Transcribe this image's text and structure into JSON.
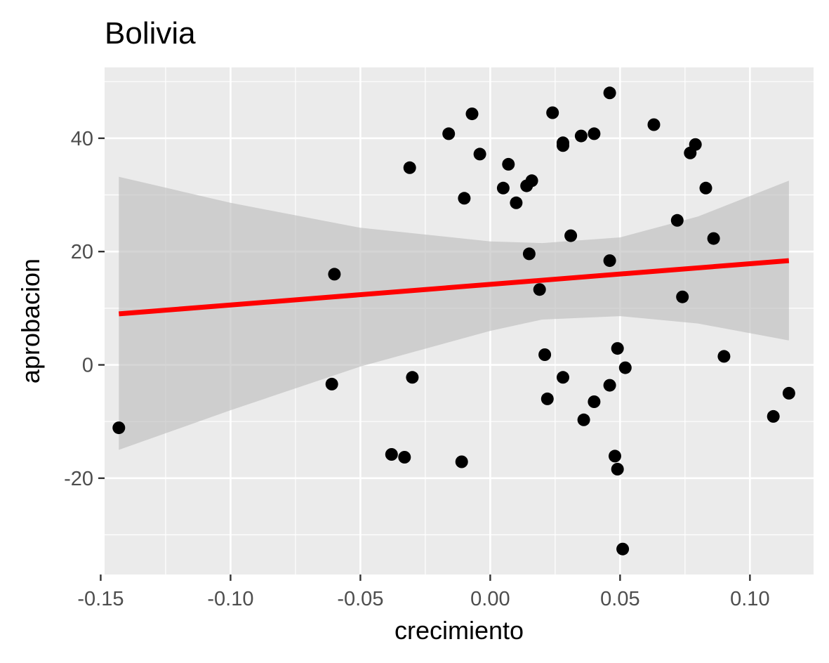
{
  "chart_data": {
    "type": "scatter",
    "title": "Bolivia",
    "xlabel": "crecimiento",
    "ylabel": "aprobacion",
    "xlim": [
      -0.1485,
      0.1245
    ],
    "ylim": [
      -37,
      52.5
    ],
    "x_ticks": [
      -0.15,
      -0.1,
      -0.05,
      0.0,
      0.05,
      0.1
    ],
    "x_tick_labels": [
      "-0.15",
      "-0.10",
      "-0.05",
      "0.00",
      "0.05",
      "0.10"
    ],
    "y_ticks": [
      -20,
      0,
      20,
      40
    ],
    "y_tick_labels": [
      "-20",
      "0",
      "20",
      "40"
    ],
    "grid": true,
    "points": [
      {
        "x": -0.143,
        "y": -11.1
      },
      {
        "x": -0.06,
        "y": 16.0
      },
      {
        "x": -0.061,
        "y": -3.4
      },
      {
        "x": -0.038,
        "y": -15.8
      },
      {
        "x": -0.033,
        "y": -16.3
      },
      {
        "x": -0.031,
        "y": 34.8
      },
      {
        "x": -0.03,
        "y": -2.2
      },
      {
        "x": -0.016,
        "y": 40.8
      },
      {
        "x": -0.011,
        "y": -17.1
      },
      {
        "x": -0.01,
        "y": 29.4
      },
      {
        "x": -0.007,
        "y": 44.3
      },
      {
        "x": -0.004,
        "y": 37.2
      },
      {
        "x": 0.005,
        "y": 31.2
      },
      {
        "x": 0.007,
        "y": 35.4
      },
      {
        "x": 0.01,
        "y": 28.6
      },
      {
        "x": 0.014,
        "y": 31.6
      },
      {
        "x": 0.015,
        "y": 19.6
      },
      {
        "x": 0.016,
        "y": 32.5
      },
      {
        "x": 0.019,
        "y": 13.3
      },
      {
        "x": 0.021,
        "y": 1.8
      },
      {
        "x": 0.022,
        "y": -6.0
      },
      {
        "x": 0.024,
        "y": 44.5
      },
      {
        "x": 0.028,
        "y": 39.2
      },
      {
        "x": 0.028,
        "y": 38.7
      },
      {
        "x": 0.028,
        "y": -2.2
      },
      {
        "x": 0.031,
        "y": 22.8
      },
      {
        "x": 0.035,
        "y": 40.4
      },
      {
        "x": 0.036,
        "y": -9.7
      },
      {
        "x": 0.04,
        "y": 40.8
      },
      {
        "x": 0.04,
        "y": -6.5
      },
      {
        "x": 0.046,
        "y": 48.0
      },
      {
        "x": 0.046,
        "y": 18.4
      },
      {
        "x": 0.046,
        "y": -3.6
      },
      {
        "x": 0.048,
        "y": -16.1
      },
      {
        "x": 0.049,
        "y": 2.9
      },
      {
        "x": 0.049,
        "y": -18.4
      },
      {
        "x": 0.051,
        "y": -32.5
      },
      {
        "x": 0.052,
        "y": -0.5
      },
      {
        "x": 0.063,
        "y": 42.4
      },
      {
        "x": 0.072,
        "y": 25.5
      },
      {
        "x": 0.074,
        "y": 12.0
      },
      {
        "x": 0.077,
        "y": 37.4
      },
      {
        "x": 0.079,
        "y": 38.9
      },
      {
        "x": 0.083,
        "y": 31.2
      },
      {
        "x": 0.086,
        "y": 22.3
      },
      {
        "x": 0.09,
        "y": 1.5
      },
      {
        "x": 0.109,
        "y": -9.1
      },
      {
        "x": 0.115,
        "y": -5.0
      }
    ],
    "trend_line": {
      "x": [
        -0.143,
        0.115
      ],
      "y": [
        9.0,
        18.4
      ],
      "color": "#ff0000"
    },
    "confidence_band": {
      "x": [
        -0.143,
        -0.1,
        -0.05,
        0.0,
        0.02,
        0.05,
        0.08,
        0.115
      ],
      "upper": [
        33.2,
        28.6,
        24.2,
        21.8,
        21.5,
        22.5,
        26.2,
        32.5
      ],
      "lower": [
        -15.0,
        -8.0,
        -0.3,
        6.0,
        8.0,
        8.6,
        7.3,
        4.3
      ]
    },
    "colors": {
      "panel": "#ebebeb",
      "grid": "#ffffff",
      "point": "#000000",
      "band": "#bfbfbf",
      "line": "#ff0000"
    }
  }
}
